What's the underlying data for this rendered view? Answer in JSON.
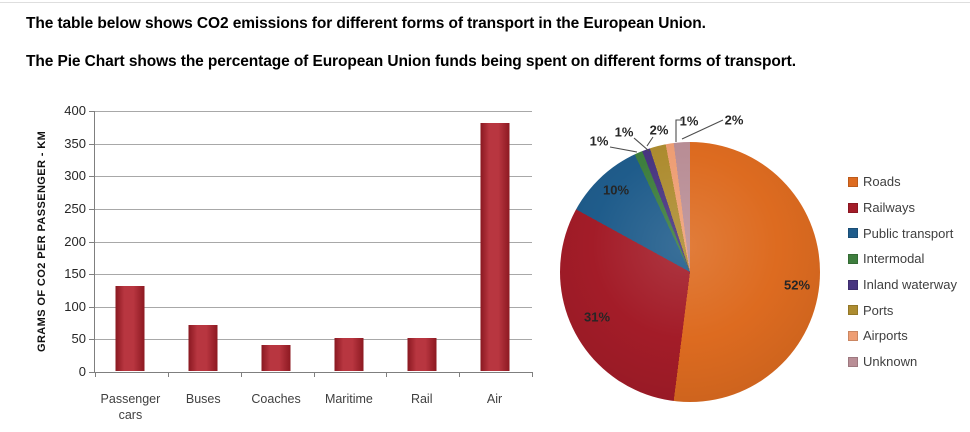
{
  "page": {
    "title_line1": "The table below shows CO2 emissions for different forms of transport in the European Union.",
    "title_line2": "The Pie Chart shows the percentage of European Union funds being spent on different forms of transport."
  },
  "chart_data": [
    {
      "type": "bar",
      "title": "",
      "xlabel": "",
      "ylabel": "GRAMS OF CO2 PER PASSENGER - KM",
      "categories": [
        "Passenger cars",
        "Buses",
        "Coaches",
        "Maritime",
        "Rail",
        "Air"
      ],
      "values": [
        130,
        70,
        40,
        50,
        50,
        380
      ],
      "ylim": [
        0,
        400
      ],
      "yticks": [
        0,
        50,
        100,
        150,
        200,
        250,
        300,
        350,
        400
      ],
      "grid": true,
      "bar_color": "#B01F2A",
      "grid_color": "#A8A8A8",
      "axis_color": "#7F7F7F"
    },
    {
      "type": "pie",
      "title": "",
      "legend_position": "right",
      "start_angle_deg": 0,
      "direction": "clockwise",
      "slices": [
        {
          "label": "Roads",
          "value": 52,
          "display": "52%",
          "color": "#DD6B20"
        },
        {
          "label": "Railways",
          "value": 31,
          "display": "31%",
          "color": "#A31C28"
        },
        {
          "label": "Public transport",
          "value": 10,
          "display": "10%",
          "color": "#1F5C8B"
        },
        {
          "label": "Intermodal",
          "value": 1,
          "display": "1%",
          "color": "#3E7E3E"
        },
        {
          "label": "Inland waterway",
          "value": 1,
          "display": "1%",
          "color": "#483580"
        },
        {
          "label": "Ports",
          "value": 2,
          "display": "2%",
          "color": "#AD8C30"
        },
        {
          "label": "Airports",
          "value": 1,
          "display": "1%",
          "color": "#EE9E74"
        },
        {
          "label": "Unknown",
          "value": 2,
          "display": "2%",
          "color": "#B98E96"
        }
      ]
    }
  ]
}
